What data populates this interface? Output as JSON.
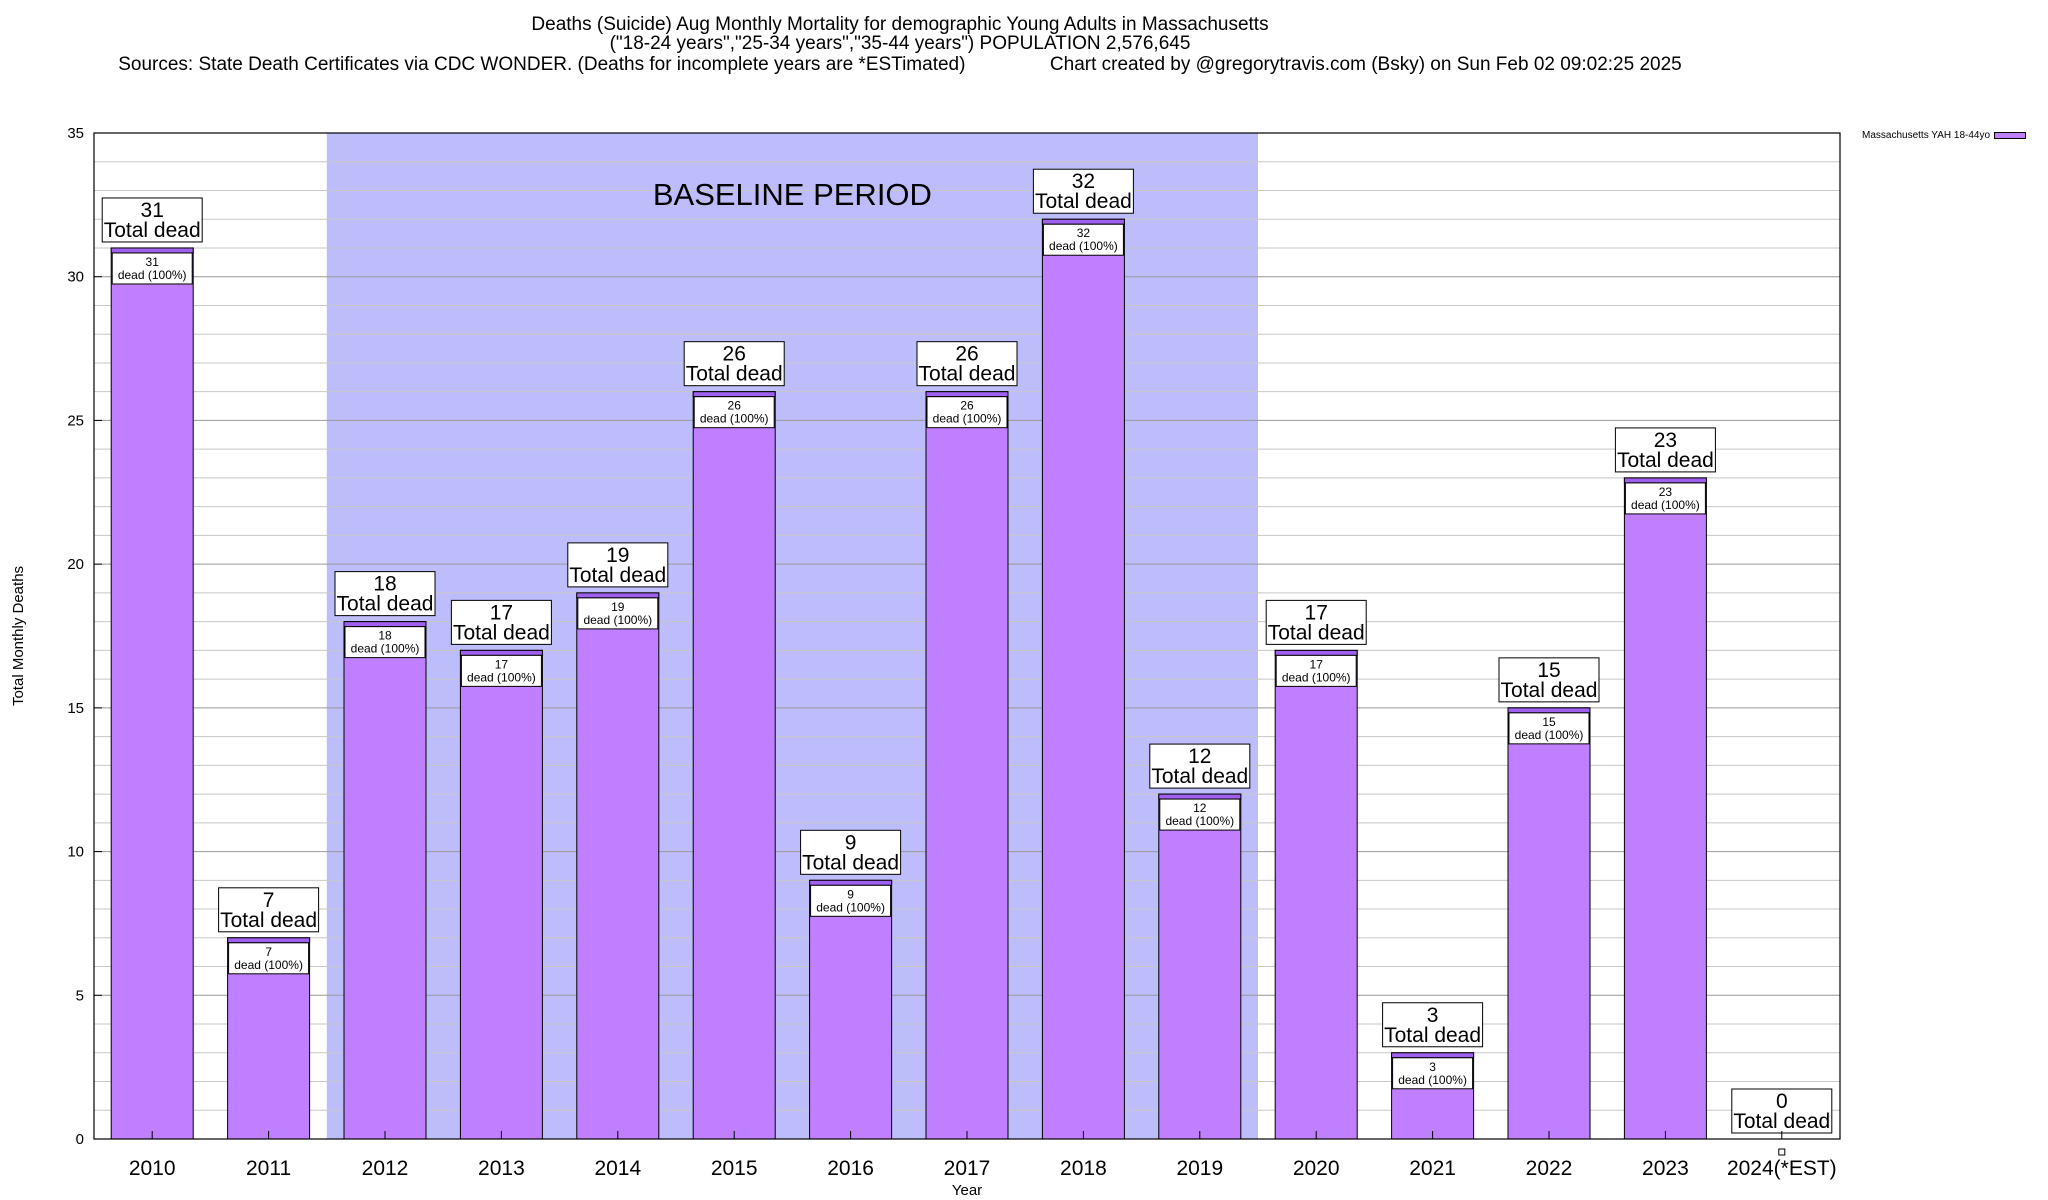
{
  "header": {
    "title_line1": "Deaths (Suicide) Aug Monthly Mortality for demographic Young Adults in Massachusetts",
    "title_line2": "(\"18-24 years\",\"25-34 years\",\"35-44 years\") POPULATION 2,576,645",
    "sources": "Sources: State Death Certificates via CDC WONDER. (Deaths for incomplete years are *ESTimated)",
    "credit": "Chart created by @gregorytravis.com (Bsky) on Sun Feb 02 09:02:25 2025"
  },
  "chart_data": {
    "type": "bar",
    "categories": [
      "2010",
      "2011",
      "2012",
      "2013",
      "2014",
      "2015",
      "2016",
      "2017",
      "2018",
      "2019",
      "2020",
      "2021",
      "2022",
      "2023",
      "2024(*EST)"
    ],
    "series": [
      {
        "name": "Massachusetts YAH 18-44yo",
        "values": [
          31,
          7,
          18,
          17,
          19,
          26,
          9,
          26,
          32,
          12,
          17,
          3,
          15,
          23,
          0
        ]
      }
    ],
    "total_label": "Total dead",
    "inner_label_suffix": "dead (100%)",
    "xlabel": "Year",
    "ylabel": "Total Monthly Deaths",
    "ylim": [
      0,
      35
    ],
    "yticks": [
      0,
      5,
      10,
      15,
      20,
      25,
      30,
      35
    ],
    "grid": true,
    "legend_position": "top-right",
    "baseline": {
      "label": "BASELINE PERIOD",
      "start": "2012",
      "end": "2019"
    },
    "colors": {
      "bar": "#bf7fff",
      "bar_top": "#9f5fef",
      "baseline": "#bdbdfb"
    }
  }
}
